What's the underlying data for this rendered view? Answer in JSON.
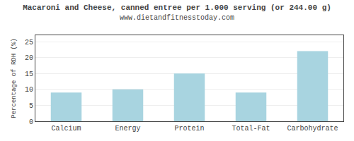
{
  "chart_data": {
    "type": "bar",
    "title": "Macaroni and Cheese, canned entree per 1.000 serving (or 244.00 g)",
    "subtitle": "www.dietandfitnesstoday.com",
    "categories": [
      "Calcium",
      "Energy",
      "Protein",
      "Total-Fat",
      "Carbohydrate"
    ],
    "values": [
      9,
      10,
      15,
      9,
      22
    ],
    "color": "#a8d4e0",
    "ylabel": "Percentage of RDH (%)",
    "ylim": [
      0,
      27
    ],
    "yticks": [
      0,
      5,
      10,
      15,
      20,
      25
    ],
    "grid": true
  }
}
